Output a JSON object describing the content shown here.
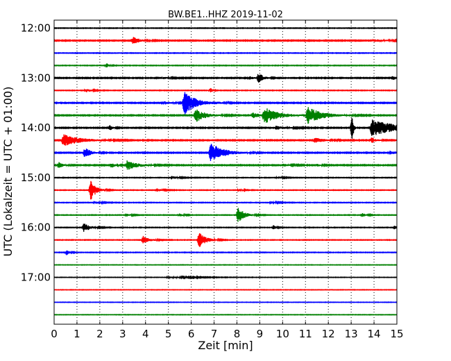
{
  "chart_data": {
    "type": "line",
    "title": "BW.BE1..HHZ 2019-11-02",
    "xlabel": "Zeit  [min]",
    "ylabel": "UTC (Lokalzeit = UTC + 01:00)",
    "xlim": [
      0,
      15
    ],
    "x_ticks": [
      0,
      1,
      2,
      3,
      4,
      5,
      6,
      7,
      8,
      9,
      10,
      11,
      12,
      13,
      14,
      15
    ],
    "x_tick_labels": [
      "0",
      "1",
      "2",
      "3",
      "4",
      "5",
      "6",
      "7",
      "8",
      "9",
      "10",
      "11",
      "12",
      "13",
      "14",
      "15"
    ],
    "y_tick_labels": [
      "12:00",
      "13:00",
      "14:00",
      "15:00",
      "16:00",
      "17:00"
    ],
    "grid": "vertical dotted",
    "trace_colors": [
      "#000000",
      "#ff0000",
      "#0000ff",
      "#008000"
    ],
    "trace_interval_minutes": 15,
    "series": [
      {
        "start": "12:00",
        "color": "#000000",
        "noise": 0.02,
        "events": []
      },
      {
        "start": "12:15",
        "color": "#ff0000",
        "noise": 0.03,
        "events": [
          {
            "t": 3.45,
            "amp": 0.3,
            "dur": 0.5
          },
          {
            "t": 14.0,
            "amp": 0.08,
            "dur": 1.0
          }
        ]
      },
      {
        "start": "12:30",
        "color": "#0000ff",
        "noise": 0.02,
        "events": []
      },
      {
        "start": "12:45",
        "color": "#008000",
        "noise": 0.02,
        "events": [
          {
            "t": 2.3,
            "amp": 0.18,
            "dur": 0.2
          }
        ]
      },
      {
        "start": "13:00",
        "color": "#000000",
        "noise": 0.03,
        "events": [
          {
            "t": 4.8,
            "amp": 0.08,
            "dur": 0.5
          },
          {
            "t": 8.55,
            "amp": 0.12,
            "dur": 0.4
          },
          {
            "t": 8.95,
            "amp": 0.4,
            "dur": 0.35
          },
          {
            "t": 14.8,
            "amp": 0.2,
            "dur": 0.3
          }
        ]
      },
      {
        "start": "13:15",
        "color": "#ff0000",
        "noise": 0.02,
        "events": [
          {
            "t": 1.4,
            "amp": 0.15,
            "dur": 0.4
          },
          {
            "t": 6.85,
            "amp": 0.18,
            "dur": 0.15
          }
        ]
      },
      {
        "start": "13:30",
        "color": "#0000ff",
        "noise": 0.03,
        "events": [
          {
            "t": 4.8,
            "amp": 0.12,
            "dur": 0.6
          },
          {
            "t": 5.7,
            "amp": 1.0,
            "dur": 0.8
          },
          {
            "t": 7.0,
            "amp": 0.05,
            "dur": 0.8
          }
        ]
      },
      {
        "start": "13:45",
        "color": "#008000",
        "noise": 0.03,
        "events": [
          {
            "t": 6.2,
            "amp": 0.55,
            "dur": 0.7
          },
          {
            "t": 8.7,
            "amp": 0.25,
            "dur": 0.5
          },
          {
            "t": 9.2,
            "amp": 0.65,
            "dur": 1.0
          },
          {
            "t": 11.1,
            "amp": 0.65,
            "dur": 1.1
          }
        ]
      },
      {
        "start": "14:00",
        "color": "#000000",
        "noise": 0.03,
        "events": [
          {
            "t": 2.45,
            "amp": 0.22,
            "dur": 0.2
          },
          {
            "t": 9.7,
            "amp": 0.14,
            "dur": 0.8
          },
          {
            "t": 13.05,
            "amp": 1.1,
            "dur": 0.1
          },
          {
            "t": 13.9,
            "amp": 0.65,
            "dur": 2.0
          }
        ]
      },
      {
        "start": "14:15",
        "color": "#ff0000",
        "noise": 0.03,
        "events": [
          {
            "t": 0.4,
            "amp": 0.5,
            "dur": 1.2
          },
          {
            "t": 11.4,
            "amp": 0.2,
            "dur": 0.7
          },
          {
            "t": 13.9,
            "amp": 0.22,
            "dur": 0.3
          }
        ]
      },
      {
        "start": "14:30",
        "color": "#0000ff",
        "noise": 0.03,
        "events": [
          {
            "t": 1.35,
            "amp": 0.45,
            "dur": 0.4
          },
          {
            "t": 6.85,
            "amp": 0.85,
            "dur": 0.9
          },
          {
            "t": 14.7,
            "amp": 0.15,
            "dur": 0.5
          }
        ]
      },
      {
        "start": "14:45",
        "color": "#008000",
        "noise": 0.03,
        "events": [
          {
            "t": 0.2,
            "amp": 0.25,
            "dur": 0.3
          },
          {
            "t": 2.5,
            "amp": 0.2,
            "dur": 0.3
          },
          {
            "t": 3.2,
            "amp": 0.38,
            "dur": 0.8
          },
          {
            "t": 10.0,
            "amp": 0.1,
            "dur": 0.6
          },
          {
            "t": 11.5,
            "amp": 0.08,
            "dur": 0.4
          }
        ]
      },
      {
        "start": "15:00",
        "color": "#000000",
        "noise": 0.02,
        "events": [
          {
            "t": 5.2,
            "amp": 0.1,
            "dur": 0.5
          },
          {
            "t": 9.8,
            "amp": 0.08,
            "dur": 0.4
          }
        ]
      },
      {
        "start": "15:15",
        "color": "#ff0000",
        "noise": 0.02,
        "events": [
          {
            "t": 1.6,
            "amp": 0.8,
            "dur": 0.4
          },
          {
            "t": 4.5,
            "amp": 0.12,
            "dur": 0.4
          },
          {
            "t": 8.1,
            "amp": 0.1,
            "dur": 0.3
          }
        ]
      },
      {
        "start": "15:30",
        "color": "#0000ff",
        "noise": 0.02,
        "events": [
          {
            "t": 1.8,
            "amp": 0.08,
            "dur": 0.5
          },
          {
            "t": 9.5,
            "amp": 0.08,
            "dur": 0.5
          }
        ]
      },
      {
        "start": "15:45",
        "color": "#008000",
        "noise": 0.02,
        "events": [
          {
            "t": 3.2,
            "amp": 0.12,
            "dur": 0.3
          },
          {
            "t": 5.5,
            "amp": 0.12,
            "dur": 0.3
          },
          {
            "t": 8.05,
            "amp": 0.6,
            "dur": 0.5
          },
          {
            "t": 13.5,
            "amp": 0.14,
            "dur": 0.3
          }
        ]
      },
      {
        "start": "16:00",
        "color": "#000000",
        "noise": 0.02,
        "events": [
          {
            "t": 1.3,
            "amp": 0.35,
            "dur": 0.5
          },
          {
            "t": 9.6,
            "amp": 0.18,
            "dur": 0.2
          },
          {
            "t": 14.9,
            "amp": 0.15,
            "dur": 0.2
          }
        ]
      },
      {
        "start": "16:15",
        "color": "#ff0000",
        "noise": 0.02,
        "events": [
          {
            "t": 3.9,
            "amp": 0.3,
            "dur": 0.5
          },
          {
            "t": 6.35,
            "amp": 0.6,
            "dur": 0.5
          }
        ]
      },
      {
        "start": "16:30",
        "color": "#0000ff",
        "noise": 0.02,
        "events": [
          {
            "t": 0.55,
            "amp": 0.22,
            "dur": 0.2
          }
        ]
      },
      {
        "start": "16:45",
        "color": "#008000",
        "noise": 0.015,
        "events": []
      },
      {
        "start": "17:00",
        "color": "#000000",
        "noise": 0.015,
        "events": [
          {
            "t": 5.0,
            "amp": 0.06,
            "dur": 2.0
          },
          {
            "t": 6.1,
            "amp": 0.12,
            "dur": 0.15
          }
        ]
      },
      {
        "start": "17:15",
        "color": "#ff0000",
        "noise": 0.015,
        "events": []
      },
      {
        "start": "17:30",
        "color": "#0000ff",
        "noise": 0.015,
        "events": []
      },
      {
        "start": "17:45",
        "color": "#008000",
        "noise": 0.015,
        "events": []
      }
    ]
  }
}
